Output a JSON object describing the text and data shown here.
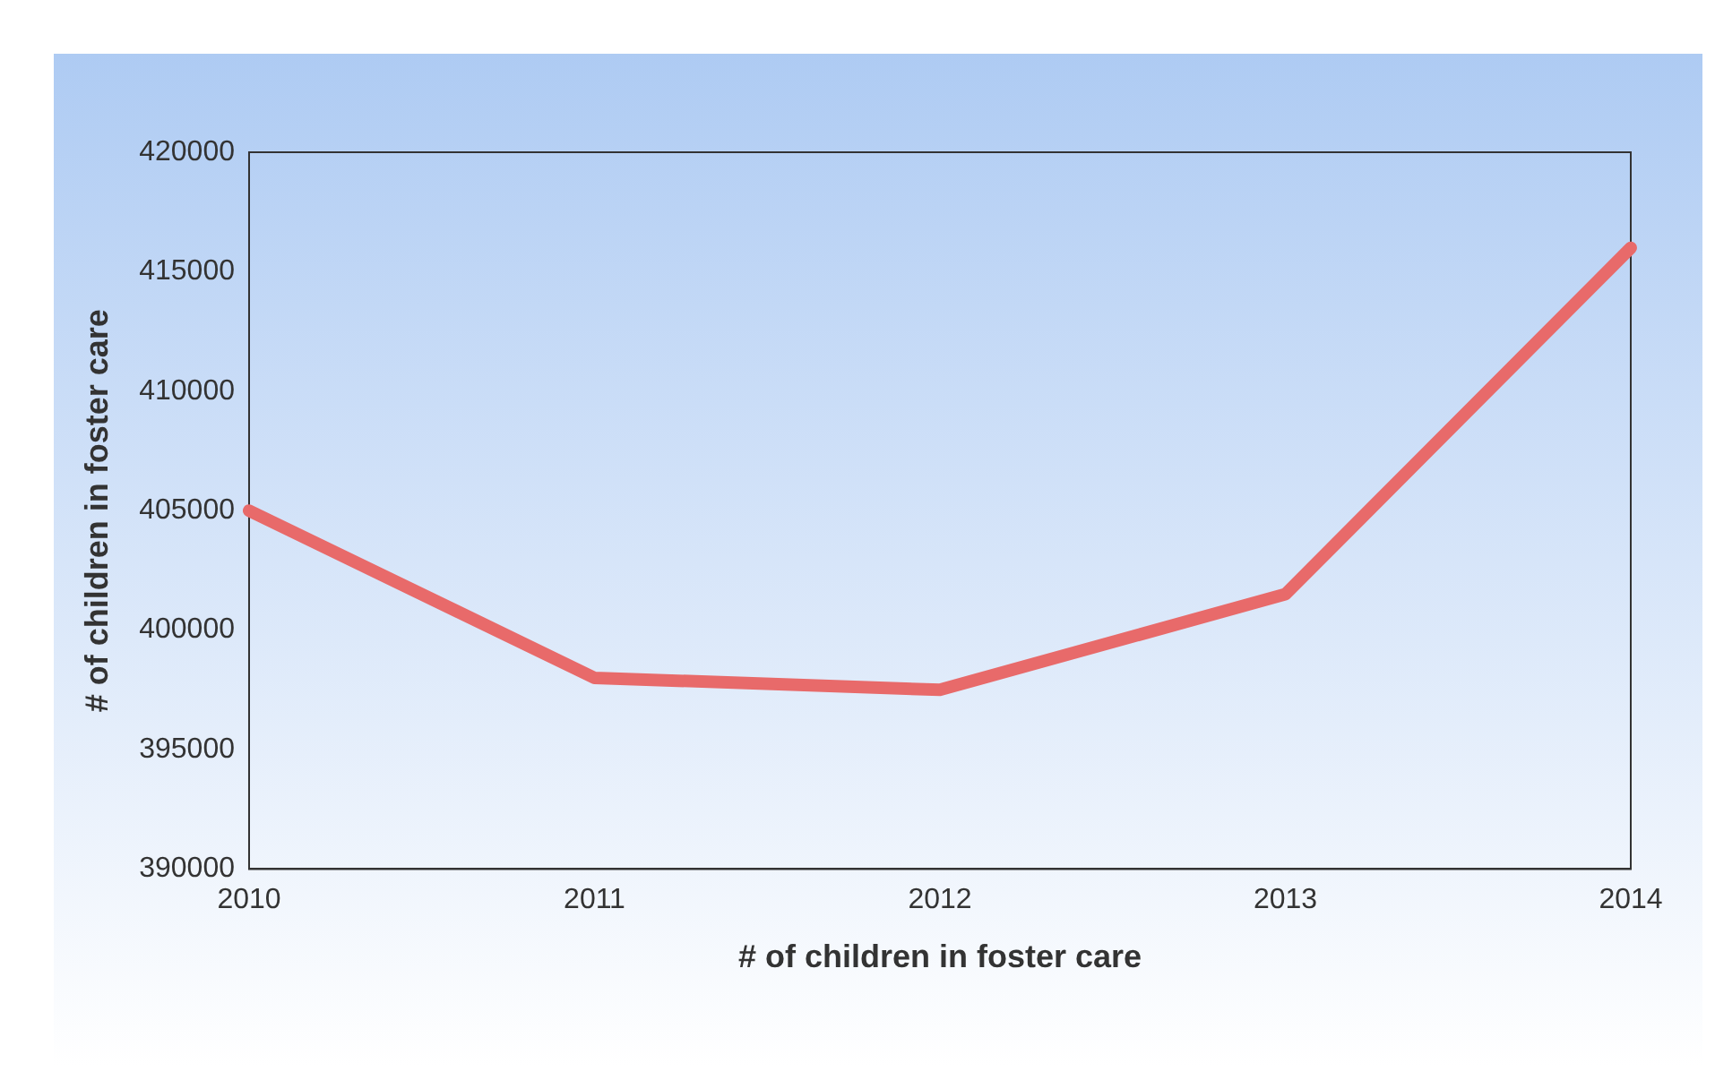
{
  "chart_data": {
    "type": "line",
    "xlabel": "# of children in foster care",
    "ylabel": "# of children in foster care",
    "categories": [
      "2010",
      "2011",
      "2012",
      "2013",
      "2014"
    ],
    "series": [
      {
        "color": "#e86a6a",
        "values": [
          405000,
          398000,
          397500,
          401500,
          416000
        ]
      }
    ],
    "ylim": [
      390000,
      420000
    ],
    "yticks": [
      390000,
      395000,
      400000,
      405000,
      410000,
      415000,
      420000
    ],
    "grid": false,
    "legend": false,
    "marker": "none",
    "line_style": "solid"
  }
}
